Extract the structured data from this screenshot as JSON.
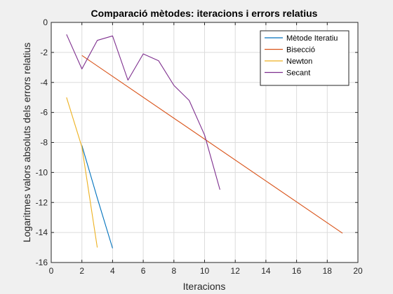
{
  "chart_data": {
    "type": "line",
    "title": "Comparació mètodes: iteracions i errors relatius",
    "xlabel": "Iteracions",
    "ylabel": "Logaritmes valors absoluts dels errors relatius",
    "xlim": [
      0,
      20
    ],
    "ylim": [
      -16,
      0
    ],
    "xticks": [
      0,
      2,
      4,
      6,
      8,
      10,
      12,
      14,
      16,
      18,
      20
    ],
    "yticks": [
      0,
      -2,
      -4,
      -6,
      -8,
      -10,
      -12,
      -14,
      -16
    ],
    "grid": true,
    "legend_position": "top-right",
    "series": [
      {
        "name": "Mètode Iteratiu",
        "color": "#0072BD",
        "x": [
          2,
          3,
          4
        ],
        "y": [
          -8.2,
          -11.7,
          -15.05
        ]
      },
      {
        "name": "Bisecció",
        "color": "#D95319",
        "x": [
          2,
          19
        ],
        "y": [
          -2.2,
          -14.05
        ]
      },
      {
        "name": "Newton",
        "color": "#EDB120",
        "x": [
          1,
          2,
          3
        ],
        "y": [
          -5.0,
          -8.3,
          -15.0
        ]
      },
      {
        "name": "Secant",
        "color": "#7E2F8E",
        "x": [
          1,
          2,
          3,
          4,
          5,
          6,
          7,
          8,
          9,
          10,
          11
        ],
        "y": [
          -0.8,
          -3.1,
          -1.2,
          -0.9,
          -3.85,
          -2.1,
          -2.55,
          -4.2,
          -5.2,
          -7.5,
          -11.15
        ]
      }
    ]
  }
}
